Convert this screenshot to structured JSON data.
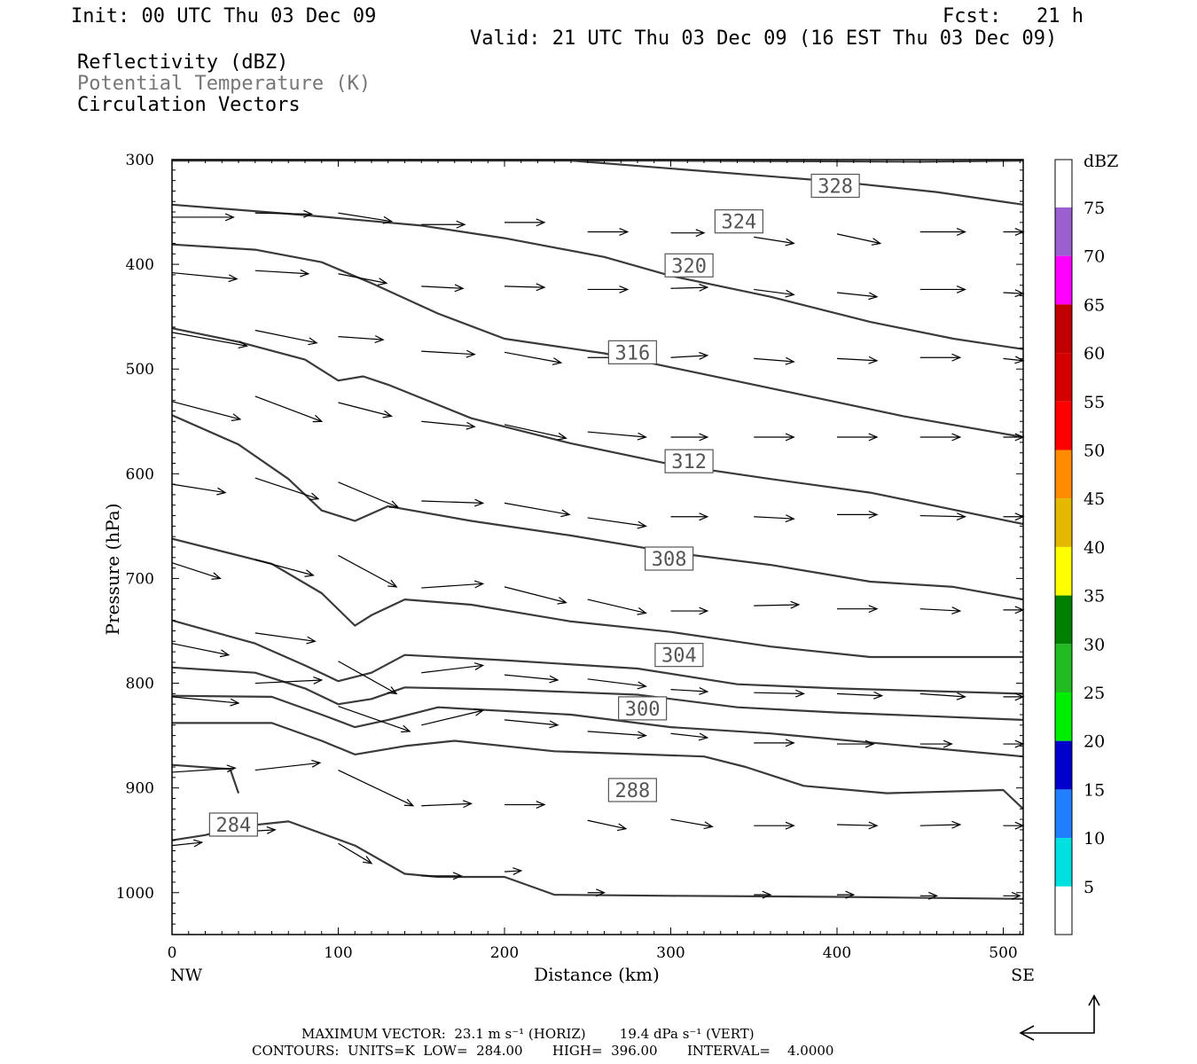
{
  "header": {
    "init": "Init: 00 UTC Thu 03 Dec 09",
    "fcst": "Fcst:   21 h",
    "valid": "Valid: 21 UTC Thu 03 Dec 09 (16 EST Thu 03 Dec 09)",
    "legend_lines": [
      "Reflectivity (dBZ)",
      "Potential Temperature (K)",
      "Circulation Vectors"
    ]
  },
  "colorbar": {
    "unit_label": "dBZ",
    "labels": [
      "75",
      "70",
      "65",
      "60",
      "55",
      "50",
      "45",
      "40",
      "35",
      "30",
      "25",
      "20",
      "15",
      "10",
      "5"
    ],
    "colors": [
      "#9b5fcf",
      "#ff00ff",
      "#c00000",
      "#d40000",
      "#ff0000",
      "#ff8c00",
      "#e5b800",
      "#ffff00",
      "#008000",
      "#22bb22",
      "#00ee00",
      "#0000cc",
      "#1e7fff",
      "#00e0e0",
      "#ffffff"
    ]
  },
  "footer": {
    "line1": "MAXIMUM VECTOR:  23.1 m s⁻¹ (HORIZ)        19.4 dPa s⁻¹ (VERT)",
    "line2": "CONTOURS:  UNITS=K  LOW=  284.00       HIGH=  396.00       INTERVAL=    4.0000"
  },
  "chart_data": {
    "type": "line",
    "xlabel": "Distance (km)",
    "ylabel": "Pressure (hPa)",
    "xlim": [
      0,
      512
    ],
    "ylim": [
      1040,
      300
    ],
    "x_ticks": [
      0,
      100,
      200,
      300,
      400,
      500
    ],
    "y_ticks": [
      300,
      400,
      500,
      600,
      700,
      800,
      900,
      1000
    ],
    "x_end_labels": {
      "left": "NW",
      "right": "SE"
    },
    "contour_labels": [
      {
        "text": "328",
        "x": 399,
        "y": 325
      },
      {
        "text": "324",
        "x": 341,
        "y": 359
      },
      {
        "text": "320",
        "x": 311,
        "y": 401
      },
      {
        "text": "316",
        "x": 277,
        "y": 484
      },
      {
        "text": "312",
        "x": 311,
        "y": 588
      },
      {
        "text": "308",
        "x": 299,
        "y": 681
      },
      {
        "text": "304",
        "x": 305,
        "y": 773
      },
      {
        "text": "300",
        "x": 283,
        "y": 824
      },
      {
        "text": "288",
        "x": 277,
        "y": 902
      },
      {
        "text": "284",
        "x": 37,
        "y": 935
      }
    ],
    "isentropes": [
      [
        [
          0,
          301
        ],
        [
          150,
          301
        ],
        [
          300,
          301
        ],
        [
          450,
          302
        ],
        [
          512,
          301
        ]
      ],
      [
        [
          240,
          301
        ],
        [
          320,
          311
        ],
        [
          400,
          321
        ],
        [
          460,
          331
        ],
        [
          512,
          343
        ]
      ],
      [
        [
          0,
          343
        ],
        [
          80,
          353
        ],
        [
          150,
          363
        ],
        [
          200,
          375
        ],
        [
          260,
          393
        ],
        [
          300,
          411
        ],
        [
          360,
          431
        ],
        [
          420,
          455
        ],
        [
          470,
          471
        ],
        [
          512,
          481
        ]
      ],
      [
        [
          0,
          381
        ],
        [
          50,
          386
        ],
        [
          90,
          398
        ],
        [
          120,
          418
        ],
        [
          160,
          447
        ],
        [
          200,
          471
        ],
        [
          260,
          485
        ],
        [
          320,
          505
        ],
        [
          380,
          525
        ],
        [
          440,
          545
        ],
        [
          512,
          565
        ]
      ],
      [
        [
          0,
          461
        ],
        [
          40,
          474
        ],
        [
          80,
          491
        ],
        [
          100,
          511
        ],
        [
          115,
          507
        ],
        [
          130,
          515
        ],
        [
          180,
          547
        ],
        [
          240,
          571
        ],
        [
          300,
          591
        ],
        [
          360,
          605
        ],
        [
          420,
          618
        ],
        [
          512,
          648
        ]
      ],
      [
        [
          0,
          544
        ],
        [
          40,
          572
        ],
        [
          70,
          605
        ],
        [
          90,
          635
        ],
        [
          110,
          645
        ],
        [
          130,
          631
        ],
        [
          180,
          645
        ],
        [
          240,
          659
        ],
        [
          300,
          675
        ],
        [
          360,
          687
        ],
        [
          420,
          703
        ],
        [
          470,
          708
        ],
        [
          512,
          720
        ]
      ],
      [
        [
          0,
          662
        ],
        [
          60,
          686
        ],
        [
          90,
          714
        ],
        [
          110,
          745
        ],
        [
          120,
          735
        ],
        [
          140,
          720
        ],
        [
          180,
          725
        ],
        [
          240,
          741
        ],
        [
          300,
          751
        ],
        [
          360,
          765
        ],
        [
          420,
          775
        ],
        [
          512,
          775
        ]
      ],
      [
        [
          0,
          740
        ],
        [
          50,
          762
        ],
        [
          80,
          783
        ],
        [
          100,
          798
        ],
        [
          120,
          790
        ],
        [
          140,
          773
        ],
        [
          200,
          778
        ],
        [
          280,
          786
        ],
        [
          340,
          801
        ],
        [
          400,
          805
        ],
        [
          512,
          810
        ]
      ],
      [
        [
          0,
          785
        ],
        [
          50,
          790
        ],
        [
          80,
          805
        ],
        [
          100,
          820
        ],
        [
          120,
          815
        ],
        [
          140,
          804
        ],
        [
          200,
          806
        ],
        [
          280,
          811
        ],
        [
          340,
          823
        ],
        [
          400,
          828
        ],
        [
          512,
          835
        ]
      ],
      [
        [
          0,
          812
        ],
        [
          60,
          813
        ],
        [
          90,
          830
        ],
        [
          110,
          842
        ],
        [
          130,
          835
        ],
        [
          160,
          823
        ],
        [
          240,
          830
        ],
        [
          300,
          842
        ],
        [
          360,
          848
        ],
        [
          512,
          870
        ]
      ],
      [
        [
          0,
          838
        ],
        [
          60,
          838
        ],
        [
          90,
          855
        ],
        [
          110,
          868
        ],
        [
          140,
          860
        ],
        [
          170,
          855
        ],
        [
          230,
          865
        ],
        [
          320,
          870
        ],
        [
          345,
          880
        ],
        [
          380,
          898
        ],
        [
          430,
          905
        ],
        [
          500,
          902
        ],
        [
          512,
          920
        ]
      ],
      [
        [
          0,
          878
        ],
        [
          35,
          882
        ],
        [
          40,
          905
        ]
      ],
      [
        [
          0,
          950
        ],
        [
          20,
          945
        ],
        [
          40,
          937
        ],
        [
          70,
          932
        ],
        [
          110,
          955
        ],
        [
          140,
          982
        ],
        [
          160,
          985
        ],
        [
          200,
          985
        ],
        [
          230,
          1002
        ],
        [
          300,
          1003
        ],
        [
          400,
          1004
        ],
        [
          512,
          1006
        ]
      ]
    ],
    "wind_vectors": [
      [
        0,
        355,
        37,
        355
      ],
      [
        50,
        351,
        84,
        352
      ],
      [
        100,
        351,
        132,
        359
      ],
      [
        150,
        362,
        176,
        362
      ],
      [
        200,
        360,
        224,
        360
      ],
      [
        250,
        369,
        274,
        369
      ],
      [
        300,
        370,
        320,
        370
      ],
      [
        350,
        374,
        374,
        380
      ],
      [
        400,
        371,
        426,
        380
      ],
      [
        450,
        369,
        477,
        369
      ],
      [
        500,
        369,
        512,
        369
      ],
      [
        0,
        408,
        39,
        414
      ],
      [
        50,
        406,
        82,
        409
      ],
      [
        100,
        409,
        129,
        418
      ],
      [
        150,
        421,
        175,
        423
      ],
      [
        200,
        421,
        224,
        422
      ],
      [
        250,
        424,
        274,
        424
      ],
      [
        300,
        423,
        322,
        422
      ],
      [
        350,
        424,
        374,
        429
      ],
      [
        400,
        427,
        424,
        431
      ],
      [
        450,
        424,
        477,
        424
      ],
      [
        500,
        427,
        512,
        428
      ],
      [
        0,
        465,
        45,
        478
      ],
      [
        50,
        463,
        87,
        475
      ],
      [
        100,
        469,
        127,
        472
      ],
      [
        150,
        483,
        182,
        486
      ],
      [
        200,
        484,
        234,
        494
      ],
      [
        250,
        489,
        274,
        489
      ],
      [
        300,
        489,
        322,
        487
      ],
      [
        350,
        490,
        374,
        493
      ],
      [
        400,
        490,
        424,
        492
      ],
      [
        450,
        489,
        474,
        489
      ],
      [
        500,
        490,
        512,
        492
      ],
      [
        0,
        531,
        41,
        548
      ],
      [
        50,
        526,
        90,
        550
      ],
      [
        100,
        532,
        132,
        545
      ],
      [
        150,
        550,
        182,
        555
      ],
      [
        200,
        553,
        237,
        566
      ],
      [
        250,
        560,
        285,
        565
      ],
      [
        300,
        565,
        322,
        565
      ],
      [
        350,
        565,
        374,
        565
      ],
      [
        400,
        565,
        424,
        565
      ],
      [
        450,
        565,
        474,
        565
      ],
      [
        500,
        565,
        512,
        565
      ],
      [
        0,
        610,
        32,
        618
      ],
      [
        50,
        604,
        88,
        624
      ],
      [
        100,
        608,
        136,
        632
      ],
      [
        150,
        626,
        187,
        628
      ],
      [
        200,
        628,
        239,
        639
      ],
      [
        250,
        642,
        285,
        650
      ],
      [
        300,
        641,
        322,
        641
      ],
      [
        350,
        641,
        374,
        643
      ],
      [
        400,
        639,
        424,
        639
      ],
      [
        450,
        640,
        477,
        641
      ],
      [
        500,
        641,
        512,
        641
      ],
      [
        0,
        685,
        29,
        700
      ],
      [
        50,
        682,
        85,
        697
      ],
      [
        100,
        678,
        135,
        708
      ],
      [
        150,
        709,
        187,
        705
      ],
      [
        200,
        708,
        237,
        723
      ],
      [
        250,
        720,
        285,
        733
      ],
      [
        300,
        731,
        322,
        731
      ],
      [
        350,
        726,
        377,
        725
      ],
      [
        400,
        729,
        424,
        729
      ],
      [
        450,
        729,
        474,
        731
      ],
      [
        500,
        730,
        512,
        730
      ],
      [
        0,
        762,
        34,
        773
      ],
      [
        50,
        752,
        86,
        760
      ],
      [
        100,
        779,
        135,
        810
      ],
      [
        150,
        790,
        187,
        783
      ],
      [
        200,
        792,
        232,
        797
      ],
      [
        250,
        796,
        285,
        803
      ],
      [
        300,
        806,
        322,
        808
      ],
      [
        350,
        809,
        380,
        810
      ],
      [
        400,
        810,
        427,
        812
      ],
      [
        450,
        810,
        477,
        813
      ],
      [
        500,
        813,
        512,
        813
      ],
      [
        0,
        813,
        40,
        819
      ],
      [
        50,
        800,
        90,
        797
      ],
      [
        100,
        822,
        143,
        846
      ],
      [
        150,
        840,
        187,
        826
      ],
      [
        200,
        835,
        232,
        840
      ],
      [
        250,
        846,
        285,
        850
      ],
      [
        300,
        848,
        322,
        852
      ],
      [
        350,
        857,
        374,
        857
      ],
      [
        400,
        858,
        422,
        858
      ],
      [
        450,
        858,
        469,
        858
      ],
      [
        500,
        858,
        512,
        858
      ],
      [
        0,
        885,
        38,
        881
      ],
      [
        50,
        883,
        89,
        876
      ],
      [
        100,
        883,
        145,
        917
      ],
      [
        150,
        917,
        180,
        915
      ],
      [
        200,
        916,
        224,
        916
      ],
      [
        250,
        931,
        273,
        939
      ],
      [
        300,
        930,
        325,
        937
      ],
      [
        350,
        936,
        374,
        936
      ],
      [
        400,
        935,
        424,
        936
      ],
      [
        450,
        936,
        474,
        935
      ],
      [
        500,
        936,
        512,
        936
      ],
      [
        0,
        955,
        18,
        952
      ],
      [
        40,
        942,
        62,
        940
      ],
      [
        100,
        953,
        120,
        972
      ],
      [
        150,
        984,
        174,
        984
      ],
      [
        200,
        980,
        210,
        979
      ],
      [
        250,
        1000,
        260,
        1000
      ],
      [
        350,
        1002,
        360,
        1002
      ],
      [
        400,
        1002,
        410,
        1002
      ],
      [
        450,
        1003,
        460,
        1003
      ],
      [
        500,
        1003,
        510,
        1003
      ]
    ]
  }
}
